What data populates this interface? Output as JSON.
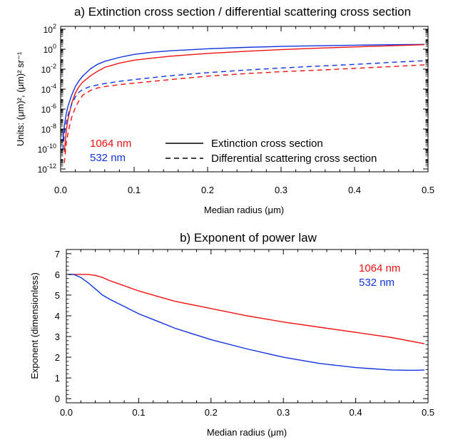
{
  "chart_data": [
    {
      "type": "line",
      "title": "a) Extinction cross section / differential scattering cross section",
      "xlabel": "Median radius (μm)",
      "ylabel": "Units: (μm)², (μm)² sr⁻¹",
      "xlim": [
        0,
        0.5
      ],
      "ylim": [
        1e-12,
        100
      ],
      "yscale": "log",
      "grid": false,
      "legend_position": "lower-center",
      "xticks": [
        "0.0",
        "0.1",
        "0.2",
        "0.3",
        "0.4",
        "0.5"
      ],
      "yticks": [
        {
          "base": "10",
          "exp": "2",
          "value": 100
        },
        {
          "base": "10",
          "exp": "0",
          "value": 1
        },
        {
          "base": "10",
          "exp": "-2",
          "value": 0.01
        },
        {
          "base": "10",
          "exp": "-4",
          "value": 0.0001
        },
        {
          "base": "10",
          "exp": "-6",
          "value": 1e-06
        },
        {
          "base": "10",
          "exp": "-8",
          "value": 1e-08
        },
        {
          "base": "10",
          "exp": "-10",
          "value": 1e-10
        },
        {
          "base": "10",
          "exp": "-12",
          "value": 1e-12
        }
      ],
      "color_labels": [
        {
          "text": "1064 nm",
          "color": "#ee1111"
        },
        {
          "text": "532 nm",
          "color": "#1133dd"
        }
      ],
      "style_legend": [
        {
          "text": "Extinction cross section",
          "dash": "solid"
        },
        {
          "text": "Differential scattering cross section",
          "dash": "dashed"
        }
      ],
      "series": [
        {
          "wavelength": "532 nm",
          "quantity": "Extinction cross section",
          "color": "#1133dd",
          "dash": "solid",
          "x": [
            0.003,
            0.005,
            0.0075,
            0.01,
            0.015,
            0.02,
            0.025,
            0.03,
            0.04,
            0.05,
            0.06,
            0.08,
            0.1,
            0.125,
            0.15,
            0.2,
            0.25,
            0.3,
            0.35,
            0.4,
            0.45,
            0.495
          ],
          "y": [
            6e-10,
            2e-08,
            3e-07,
            2e-06,
            2.5e-05,
            0.00018,
            0.0007,
            0.002,
            0.01,
            0.03,
            0.06,
            0.15,
            0.3,
            0.5,
            0.7,
            1.1,
            1.5,
            1.9,
            2.2,
            2.5,
            2.8,
            3.0
          ]
        },
        {
          "wavelength": "1064 nm",
          "quantity": "Extinction cross section",
          "color": "#ee1111",
          "dash": "solid",
          "x": [
            0.005,
            0.0075,
            0.01,
            0.015,
            0.02,
            0.025,
            0.03,
            0.04,
            0.05,
            0.06,
            0.08,
            0.1,
            0.125,
            0.15,
            0.2,
            0.25,
            0.3,
            0.35,
            0.4,
            0.45,
            0.495
          ],
          "y": [
            5e-11,
            5e-09,
            1e-07,
            4e-06,
            4e-05,
            0.00018,
            0.0005,
            0.002,
            0.006,
            0.015,
            0.04,
            0.08,
            0.13,
            0.2,
            0.38,
            0.6,
            0.9,
            1.25,
            1.7,
            2.2,
            2.8
          ]
        },
        {
          "wavelength": "532 nm",
          "quantity": "Differential scattering cross section",
          "color": "#1133dd",
          "dash": "dashed",
          "x": [
            0.003,
            0.005,
            0.0075,
            0.01,
            0.015,
            0.02,
            0.025,
            0.03,
            0.04,
            0.05,
            0.06,
            0.08,
            0.1,
            0.15,
            0.2,
            0.25,
            0.3,
            0.35,
            0.4,
            0.45,
            0.495
          ],
          "y": [
            8e-11,
            3e-09,
            4e-08,
            2.5e-07,
            3e-06,
            1.6e-05,
            5e-05,
            9e-05,
            0.00018,
            0.00026,
            0.00036,
            0.0006,
            0.0009,
            0.0022,
            0.0045,
            0.008,
            0.013,
            0.02,
            0.03,
            0.048,
            0.07
          ]
        },
        {
          "wavelength": "1064 nm",
          "quantity": "Differential scattering cross section",
          "color": "#ee1111",
          "dash": "dashed",
          "x": [
            0.005,
            0.0075,
            0.01,
            0.015,
            0.02,
            0.025,
            0.03,
            0.04,
            0.05,
            0.06,
            0.08,
            0.1,
            0.15,
            0.2,
            0.25,
            0.3,
            0.35,
            0.4,
            0.45,
            0.495
          ],
          "y": [
            4e-12,
            3e-10,
            4e-09,
            1.5e-07,
            1.4e-06,
            7e-06,
            2.4e-05,
            7e-05,
            0.00013,
            0.00018,
            0.00028,
            0.0004,
            0.0009,
            0.002,
            0.0035,
            0.0055,
            0.008,
            0.012,
            0.018,
            0.027
          ]
        }
      ]
    },
    {
      "type": "line",
      "title": "b) Exponent of power law",
      "xlabel": "Median radius (μm)",
      "ylabel": "Exponent (dimensionless)",
      "xlim": [
        0,
        0.5
      ],
      "ylim": [
        -0.2,
        7.2
      ],
      "grid": false,
      "legend_position": "top-right",
      "xticks": [
        "0.0",
        "0.1",
        "0.2",
        "0.3",
        "0.4",
        "0.5"
      ],
      "yticks": [
        "0",
        "1",
        "2",
        "3",
        "4",
        "5",
        "6",
        "7"
      ],
      "series": [
        {
          "name": "1064 nm",
          "color": "#ee1111",
          "x": [
            0.003,
            0.01,
            0.02,
            0.03,
            0.04,
            0.05,
            0.06,
            0.08,
            0.1,
            0.125,
            0.15,
            0.2,
            0.25,
            0.3,
            0.35,
            0.4,
            0.45,
            0.495
          ],
          "y": [
            6.0,
            6.0,
            6.0,
            6.0,
            5.95,
            5.85,
            5.7,
            5.45,
            5.2,
            4.95,
            4.7,
            4.35,
            4.0,
            3.7,
            3.45,
            3.2,
            2.95,
            2.65
          ]
        },
        {
          "name": "532 nm",
          "color": "#1133dd",
          "x": [
            0.003,
            0.01,
            0.02,
            0.03,
            0.04,
            0.05,
            0.06,
            0.08,
            0.1,
            0.125,
            0.15,
            0.2,
            0.25,
            0.3,
            0.35,
            0.4,
            0.45,
            0.48,
            0.495
          ],
          "y": [
            6.0,
            6.0,
            5.85,
            5.6,
            5.3,
            5.0,
            4.8,
            4.45,
            4.1,
            3.75,
            3.4,
            2.85,
            2.4,
            2.0,
            1.7,
            1.5,
            1.38,
            1.37,
            1.38
          ]
        }
      ]
    }
  ]
}
